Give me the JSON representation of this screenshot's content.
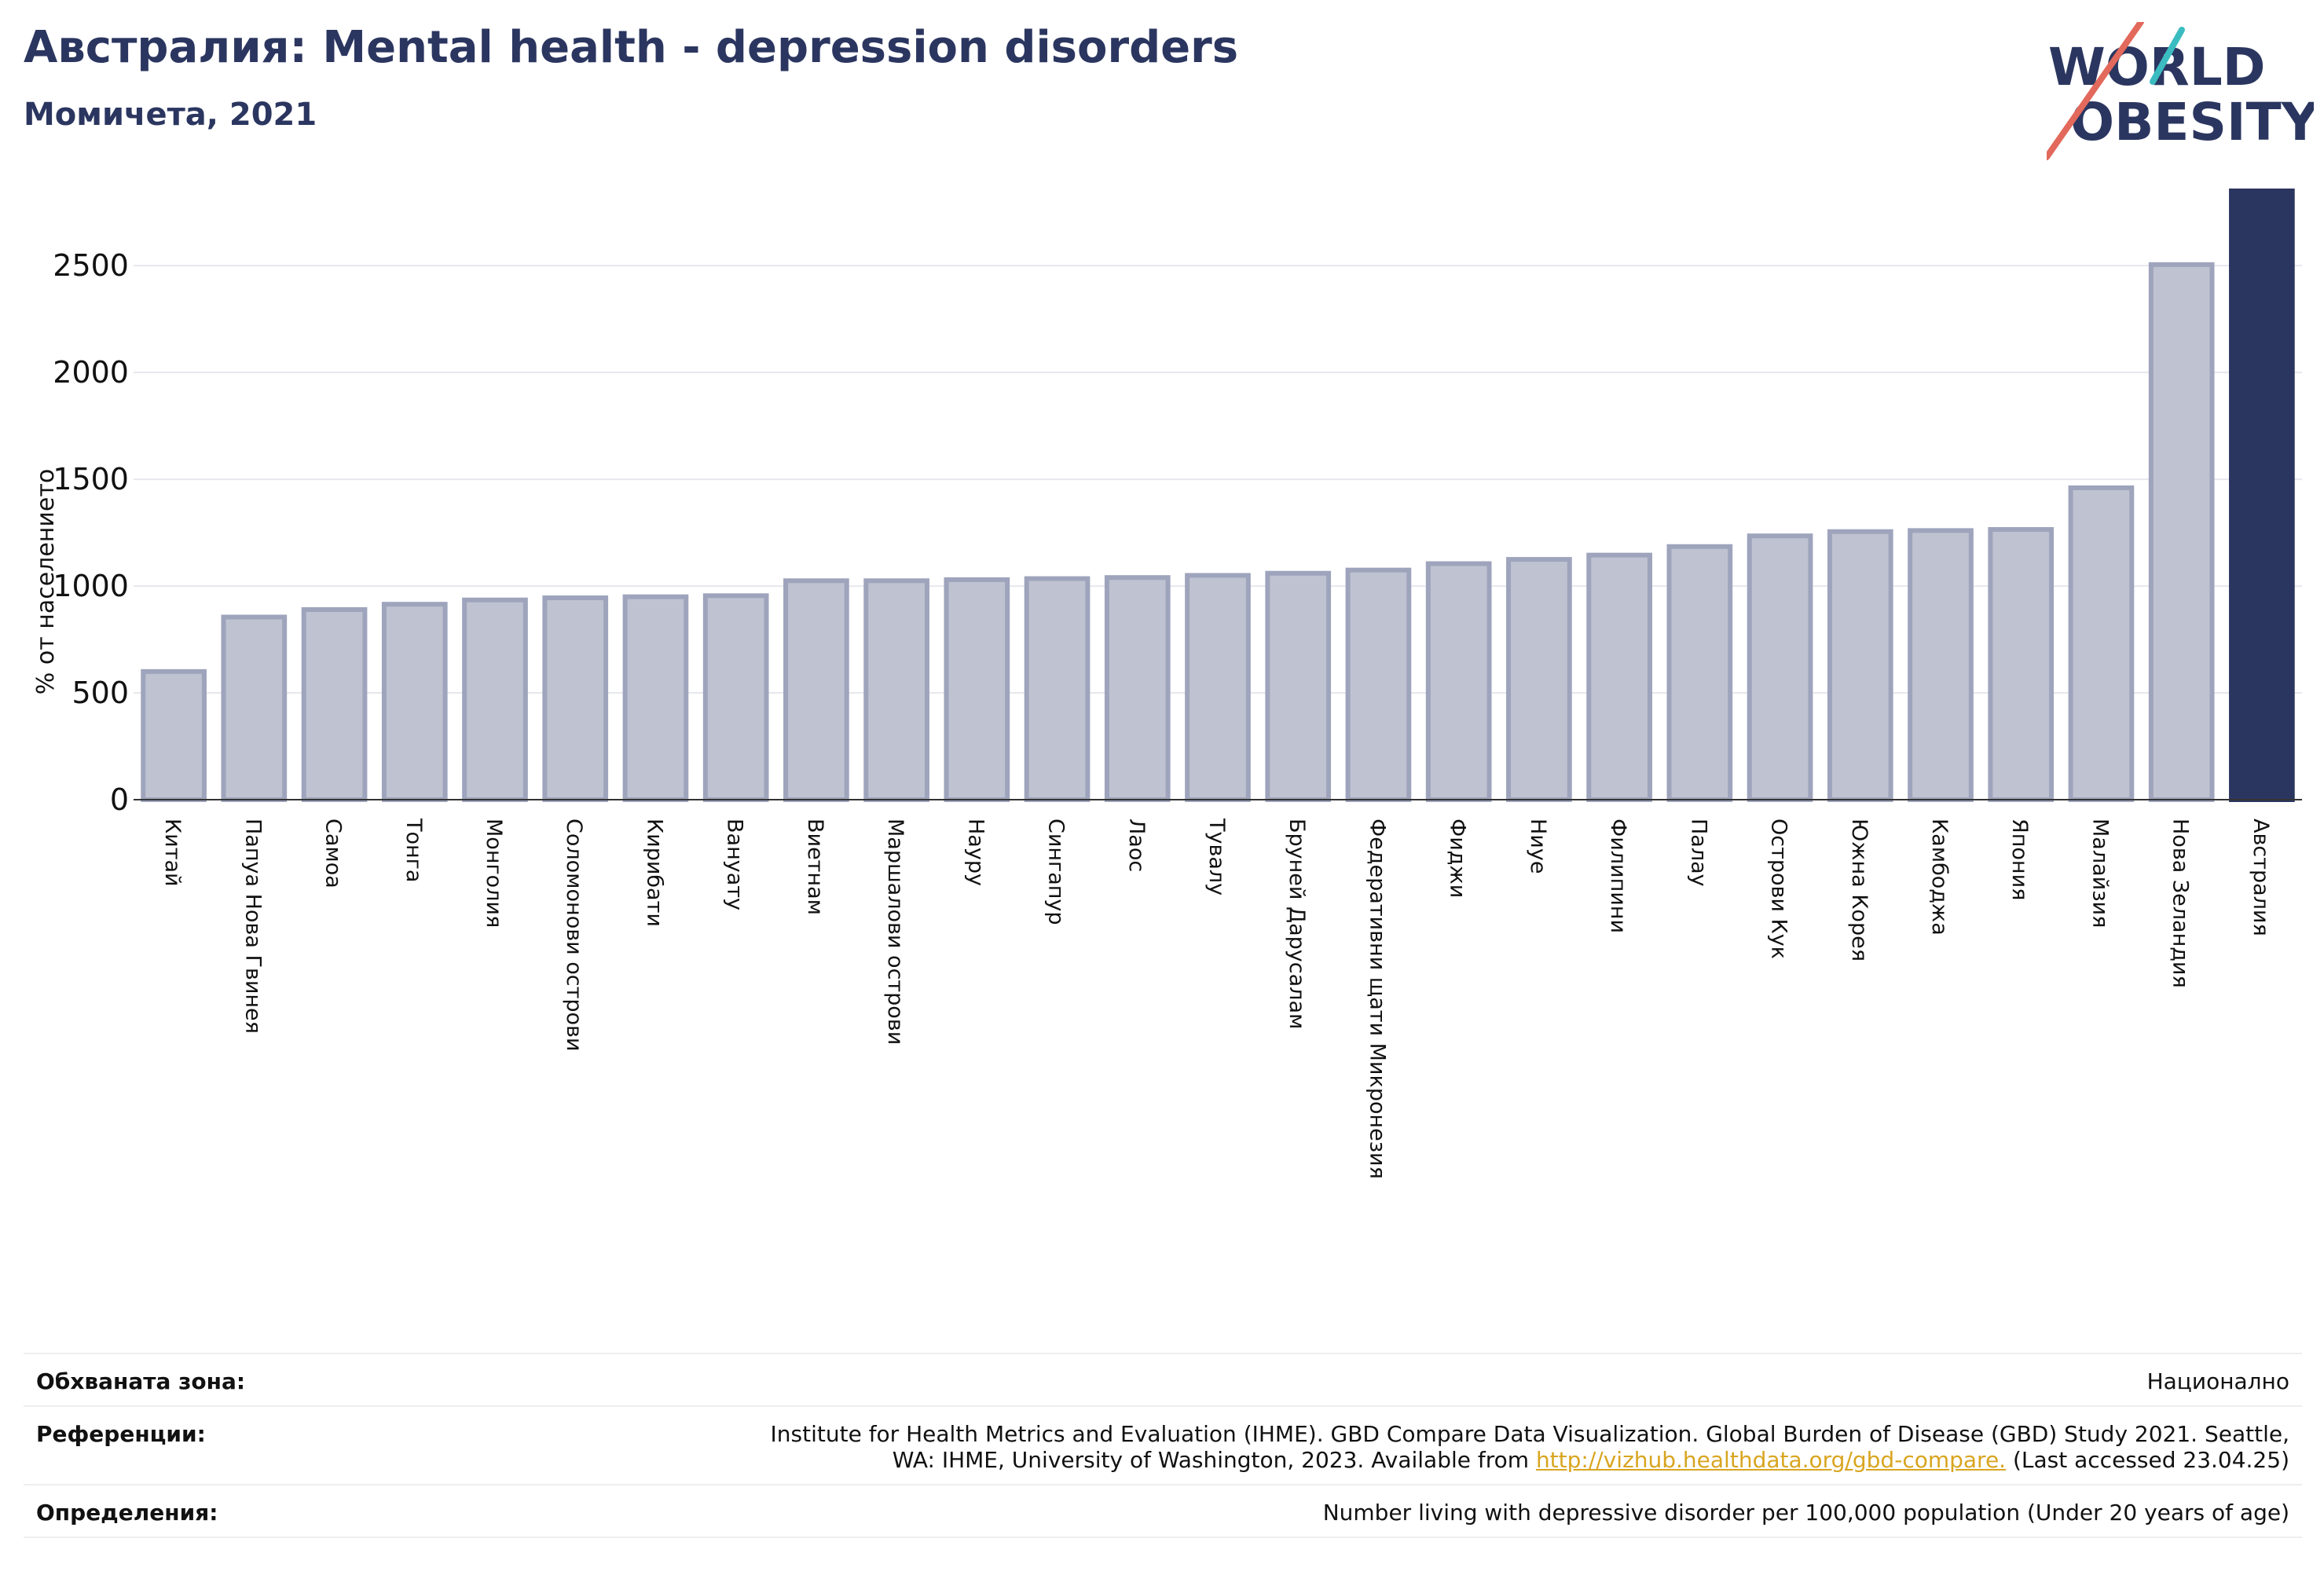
{
  "header": {
    "title": "Австралия: Mental health - depression disorders",
    "subtitle": "Момичета, 2021"
  },
  "logo": {
    "line1": "WORLD",
    "line2": "OBESITY"
  },
  "colors": {
    "bar": "#bfc2d0",
    "bar_edge": "#9ea4bc",
    "highlight": "#2b3660",
    "grid": "#e6e8ee",
    "title": "#2b3660"
  },
  "chart_data": {
    "type": "bar",
    "ylabel": "% от населението",
    "ylim": [
      0,
      2850
    ],
    "yticks": [
      0,
      500,
      1000,
      1500,
      2000,
      2500
    ],
    "grid": true,
    "highlight": "Австралия",
    "categories": [
      "Китай",
      "Папуа Нова Гвинея",
      "Самоа",
      "Тонга",
      "Монголия",
      "Соломонови острови",
      "Кирибати",
      "Вануату",
      "Виетнам",
      "Маршалови острови",
      "Науру",
      "Сингапур",
      "Лаос",
      "Тувалу",
      "Бруней Дарусалам",
      "Федеративни щати Микронезия",
      "Фиджи",
      "Ниуе",
      "Филипини",
      "Палау",
      "Острови Кук",
      "Южна Корея",
      "Камбоджа",
      "Япония",
      "Малайзия",
      "Нова Зеландия",
      "Австралия"
    ],
    "values": [
      600,
      855,
      890,
      915,
      935,
      945,
      950,
      955,
      1025,
      1025,
      1030,
      1035,
      1040,
      1050,
      1060,
      1075,
      1105,
      1125,
      1145,
      1185,
      1235,
      1255,
      1260,
      1265,
      1460,
      2505,
      2850
    ]
  },
  "info": {
    "rows": [
      {
        "label": "Обхваната зона:",
        "value": "Национално"
      },
      {
        "label": "Референции:",
        "value_line1": "Institute for Health Metrics and Evaluation (IHME). GBD Compare Data Visualization. Global Burden of Disease (GBD) Study 2021. Seattle,",
        "value_line2_pre": "WA: IHME, University of Washington, 2023. Available from ",
        "link": "http://vizhub.healthdata.org/gbd-compare.",
        "value_line2_post": " (Last accessed 23.04.25)"
      },
      {
        "label": "Определения:",
        "value": "Number living with depressive disorder per 100,000 population (Under 20 years of age)"
      }
    ]
  }
}
